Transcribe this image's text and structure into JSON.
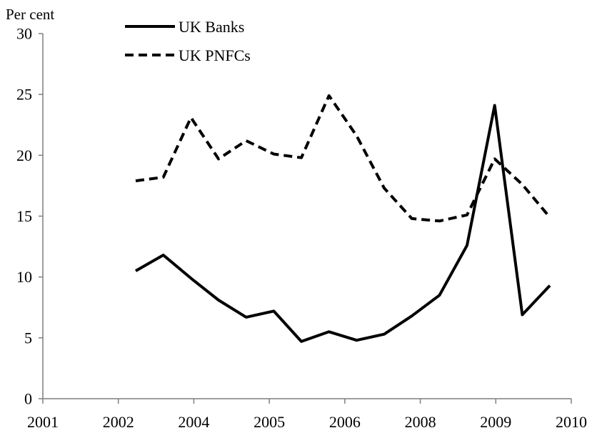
{
  "chart_data": {
    "type": "line",
    "title": "",
    "xlabel": "",
    "ylabel": "Per cent",
    "ylim": [
      0,
      30
    ],
    "yticks": [
      0,
      5,
      10,
      15,
      20,
      25,
      30
    ],
    "xticks": [
      "2001",
      "2002",
      "2004",
      "2005",
      "2006",
      "2008",
      "2009",
      "2010"
    ],
    "grid": false,
    "legend": "top-left",
    "series": [
      {
        "name": "UK Banks",
        "style": "solid",
        "color": "#000000",
        "values": [
          10.5,
          11.8,
          9.9,
          8.1,
          6.7,
          7.2,
          4.7,
          5.5,
          4.8,
          5.3,
          6.8,
          8.5,
          12.6,
          24.1,
          6.9,
          9.3
        ]
      },
      {
        "name": "UK PNFCs",
        "style": "dashed",
        "color": "#000000",
        "values": [
          17.9,
          18.2,
          23.1,
          19.7,
          21.2,
          20.1,
          19.8,
          24.9,
          21.6,
          17.3,
          14.8,
          14.6,
          15.1,
          19.7,
          17.6,
          14.9
        ]
      }
    ]
  }
}
